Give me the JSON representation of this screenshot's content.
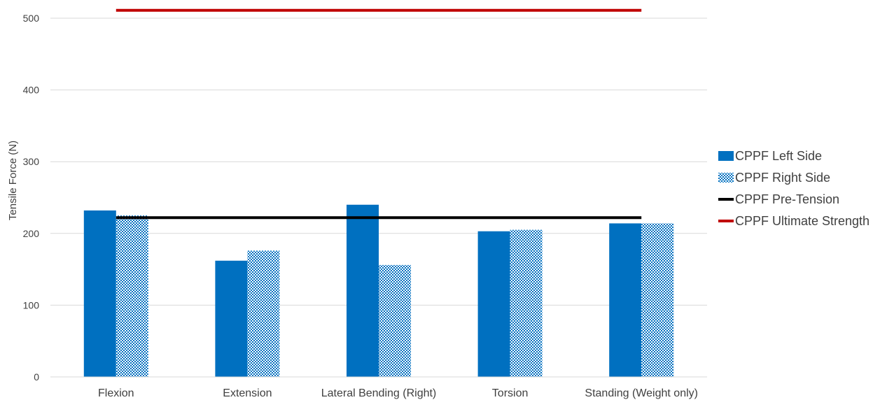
{
  "chart_data": {
    "type": "bar",
    "ylabel": "Tensile Force (N)",
    "ylim": [
      0,
      500
    ],
    "yticks": [
      0,
      100,
      200,
      300,
      400,
      500
    ],
    "grid": true,
    "legend_position": "right",
    "categories": [
      "Flexion",
      "Extension",
      "Lateral Bending (Right)",
      "Torsion",
      "Standing (Weight only)"
    ],
    "series": [
      {
        "name": "CPPF Left Side",
        "kind": "bar",
        "pattern": "solid",
        "color": "#0070c0",
        "values": [
          232,
          162,
          240,
          203,
          214
        ]
      },
      {
        "name": "CPPF Right Side",
        "kind": "bar",
        "pattern": "checkerboard",
        "color": "#0070c0",
        "values": [
          225,
          176,
          156,
          205,
          214
        ]
      }
    ],
    "lines": [
      {
        "name": "CPPF Pre-Tension",
        "kind": "line",
        "color": "#000000",
        "value": 222
      },
      {
        "name": "CPPF Ultimate Strength",
        "kind": "line",
        "color": "#c00000",
        "value": 511
      }
    ]
  }
}
